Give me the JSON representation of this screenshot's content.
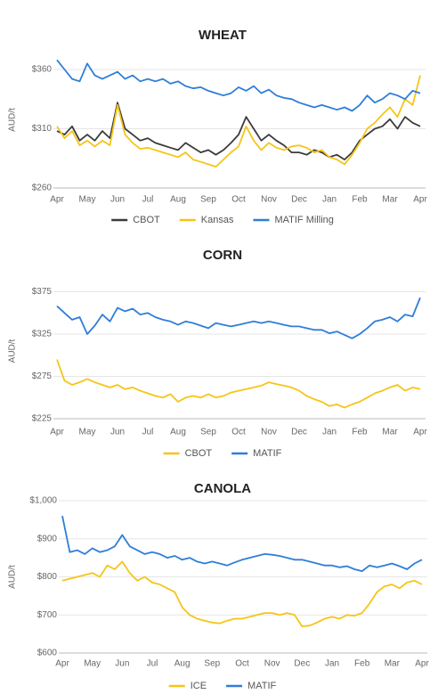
{
  "chart_data": [
    {
      "type": "line",
      "title": "WHEAT",
      "y_label": "AUD/t",
      "categories": [
        "Apr",
        null,
        null,
        null,
        "May",
        null,
        null,
        null,
        "Jun",
        null,
        null,
        null,
        "Jul",
        null,
        null,
        null,
        "Aug",
        null,
        null,
        null,
        "Sep",
        null,
        null,
        null,
        "Oct",
        null,
        null,
        null,
        "Nov",
        null,
        null,
        null,
        "Dec",
        null,
        null,
        null,
        "Jan",
        null,
        null,
        null,
        "Feb",
        null,
        null,
        null,
        "Mar",
        null,
        null,
        null,
        "Apr"
      ],
      "series": [
        {
          "name": "CBOT",
          "color": "#3b3b3b",
          "values": [
            308,
            305,
            312,
            300,
            305,
            300,
            308,
            302,
            332,
            310,
            305,
            300,
            302,
            298,
            296,
            294,
            292,
            298,
            294,
            290,
            292,
            288,
            292,
            298,
            305,
            320,
            310,
            300,
            305,
            300,
            296,
            290,
            290,
            288,
            292,
            290,
            286,
            288,
            284,
            290,
            300,
            305,
            310,
            312,
            318,
            310,
            320,
            315,
            312
          ]
        },
        {
          "name": "Kansas",
          "color": "#f5c518",
          "values": [
            312,
            302,
            308,
            296,
            300,
            295,
            300,
            296,
            330,
            305,
            298,
            293,
            294,
            292,
            290,
            288,
            286,
            290,
            284,
            282,
            280,
            278,
            284,
            290,
            295,
            312,
            300,
            292,
            298,
            294,
            292,
            295,
            296,
            294,
            290,
            292,
            286,
            284,
            280,
            288,
            298,
            310,
            315,
            322,
            328,
            320,
            335,
            330,
            355
          ]
        },
        {
          "name": "MATIF Milling",
          "color": "#2f7ed8",
          "values": [
            368,
            360,
            352,
            350,
            365,
            355,
            352,
            355,
            358,
            352,
            355,
            350,
            352,
            350,
            352,
            348,
            350,
            346,
            344,
            345,
            342,
            340,
            338,
            340,
            345,
            342,
            346,
            340,
            343,
            338,
            336,
            335,
            332,
            330,
            328,
            330,
            328,
            326,
            328,
            325,
            330,
            338,
            332,
            335,
            340,
            338,
            335,
            342,
            340
          ]
        }
      ],
      "ylim": [
        260,
        375
      ],
      "yticks": [
        {
          "value": 260,
          "label": "$260"
        },
        {
          "value": 310,
          "label": "$310"
        },
        {
          "value": 360,
          "label": "$360"
        }
      ],
      "grid": true
    },
    {
      "type": "line",
      "title": "CORN",
      "y_label": "AUD/t",
      "categories": [
        "Apr",
        null,
        null,
        null,
        "May",
        null,
        null,
        null,
        "Jun",
        null,
        null,
        null,
        "Jul",
        null,
        null,
        null,
        "Aug",
        null,
        null,
        null,
        "Sep",
        null,
        null,
        null,
        "Oct",
        null,
        null,
        null,
        "Nov",
        null,
        null,
        null,
        "Dec",
        null,
        null,
        null,
        "Jan",
        null,
        null,
        null,
        "Feb",
        null,
        null,
        null,
        "Mar",
        null,
        null,
        null,
        "Apr"
      ],
      "series": [
        {
          "name": "CBOT",
          "color": "#f5c518",
          "values": [
            295,
            270,
            265,
            268,
            272,
            268,
            265,
            262,
            265,
            260,
            262,
            258,
            255,
            252,
            250,
            254,
            245,
            250,
            252,
            250,
            254,
            250,
            252,
            256,
            258,
            260,
            262,
            264,
            268,
            266,
            264,
            262,
            258,
            252,
            248,
            245,
            240,
            242,
            238,
            242,
            245,
            250,
            255,
            258,
            262,
            265,
            258,
            262,
            260
          ]
        },
        {
          "name": "MATIF",
          "color": "#2f7ed8",
          "values": [
            358,
            350,
            342,
            345,
            325,
            335,
            348,
            340,
            356,
            352,
            355,
            348,
            350,
            345,
            342,
            340,
            336,
            340,
            338,
            335,
            332,
            338,
            336,
            334,
            336,
            338,
            340,
            338,
            340,
            338,
            336,
            334,
            334,
            332,
            330,
            330,
            326,
            328,
            324,
            320,
            325,
            332,
            340,
            342,
            345,
            340,
            348,
            346,
            368
          ]
        }
      ],
      "ylim": [
        225,
        385
      ],
      "yticks": [
        {
          "value": 225,
          "label": "$225"
        },
        {
          "value": 275,
          "label": "$275"
        },
        {
          "value": 325,
          "label": "$325"
        },
        {
          "value": 375,
          "label": "$375"
        }
      ],
      "grid": true
    },
    {
      "type": "line",
      "title": "CANOLA",
      "y_label": "AUD/t",
      "categories": [
        "Apr",
        null,
        null,
        null,
        "May",
        null,
        null,
        null,
        "Jun",
        null,
        null,
        null,
        "Jul",
        null,
        null,
        null,
        "Aug",
        null,
        null,
        null,
        "Sep",
        null,
        null,
        null,
        "Oct",
        null,
        null,
        null,
        "Nov",
        null,
        null,
        null,
        "Dec",
        null,
        null,
        null,
        "Jan",
        null,
        null,
        null,
        "Feb",
        null,
        null,
        null,
        "Mar",
        null,
        null,
        null,
        "Apr"
      ],
      "series": [
        {
          "name": "ICE",
          "color": "#f5c518",
          "values": [
            790,
            795,
            800,
            805,
            810,
            800,
            830,
            820,
            840,
            810,
            790,
            800,
            785,
            780,
            770,
            760,
            720,
            700,
            690,
            685,
            680,
            678,
            685,
            690,
            690,
            695,
            700,
            705,
            705,
            700,
            705,
            700,
            670,
            672,
            680,
            690,
            695,
            690,
            700,
            698,
            705,
            730,
            760,
            775,
            780,
            770,
            785,
            790,
            780
          ]
        },
        {
          "name": "MATIF",
          "color": "#2f7ed8",
          "values": [
            960,
            865,
            870,
            860,
            875,
            865,
            870,
            880,
            910,
            880,
            870,
            860,
            865,
            860,
            850,
            855,
            845,
            850,
            840,
            835,
            840,
            835,
            830,
            838,
            845,
            850,
            855,
            860,
            858,
            855,
            850,
            845,
            845,
            840,
            835,
            830,
            830,
            825,
            828,
            820,
            815,
            830,
            825,
            830,
            835,
            828,
            820,
            835,
            845
          ]
        }
      ],
      "ylim": [
        600,
        1000
      ],
      "yticks": [
        {
          "value": 600,
          "label": "$600"
        },
        {
          "value": 700,
          "label": "$700"
        },
        {
          "value": 800,
          "label": "$800"
        },
        {
          "value": 900,
          "label": "$900"
        },
        {
          "value": 1000,
          "label": "$1,000"
        }
      ],
      "grid": true
    }
  ]
}
